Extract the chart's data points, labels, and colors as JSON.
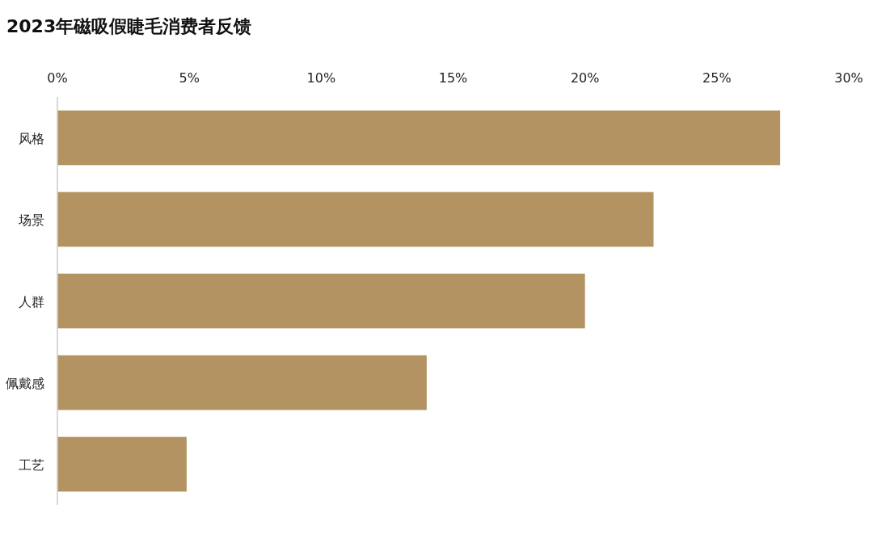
{
  "chart_data": {
    "type": "bar",
    "orientation": "horizontal",
    "title": "2023年磁吸假睫毛消费者反馈",
    "categories": [
      "风格",
      "场景",
      "人群",
      "佩戴感",
      "工艺"
    ],
    "values": [
      27.4,
      22.6,
      20.0,
      14.0,
      4.9
    ],
    "color": "#b39361",
    "xlim": [
      0,
      30
    ],
    "xticks": [
      {
        "value": 0,
        "label": "0%"
      },
      {
        "value": 5,
        "label": "5%"
      },
      {
        "value": 10,
        "label": "10%"
      },
      {
        "value": 15,
        "label": "15%"
      },
      {
        "value": 20,
        "label": "20%"
      },
      {
        "value": 25,
        "label": "25%"
      },
      {
        "value": 30,
        "label": "30%"
      }
    ]
  }
}
